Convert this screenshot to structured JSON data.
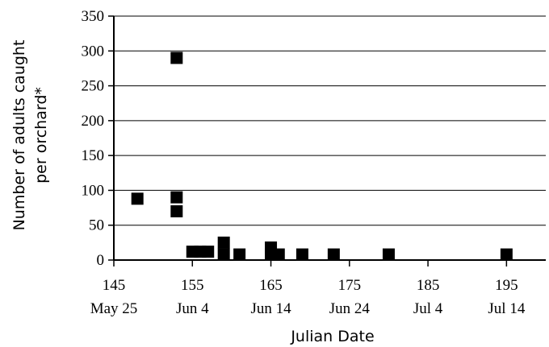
{
  "chart_data": {
    "type": "scatter",
    "title": "",
    "xlabel": "Julian Date",
    "ylabel_lines": [
      "Number of adults caught",
      "per orchard*"
    ],
    "xlim": [
      145,
      200
    ],
    "ylim": [
      0,
      350
    ],
    "x_ticks": [
      {
        "value": 145,
        "label": "145",
        "date": "May 25"
      },
      {
        "value": 155,
        "label": "155",
        "date": "Jun 4"
      },
      {
        "value": 165,
        "label": "165",
        "date": "Jun 14"
      },
      {
        "value": 175,
        "label": "175",
        "date": "Jun 24"
      },
      {
        "value": 185,
        "label": "185",
        "date": "Jul 4"
      },
      {
        "value": 195,
        "label": "195",
        "date": "Jul 14"
      }
    ],
    "y_ticks": [
      {
        "value": 0,
        "label": "0"
      },
      {
        "value": 50,
        "label": "50"
      },
      {
        "value": 100,
        "label": "100"
      },
      {
        "value": 150,
        "label": "150"
      },
      {
        "value": 200,
        "label": "200"
      },
      {
        "value": 250,
        "label": "250"
      },
      {
        "value": 300,
        "label": "300"
      },
      {
        "value": 350,
        "label": "350"
      }
    ],
    "grid": "horizontal",
    "marker_color": "#000000",
    "points": [
      {
        "x": 148,
        "y": 88
      },
      {
        "x": 153,
        "y": 290
      },
      {
        "x": 153,
        "y": 90
      },
      {
        "x": 153,
        "y": 70
      },
      {
        "x": 155,
        "y": 12
      },
      {
        "x": 156,
        "y": 12
      },
      {
        "x": 157,
        "y": 12
      },
      {
        "x": 159,
        "y": 25
      },
      {
        "x": 159,
        "y": 8
      },
      {
        "x": 161,
        "y": 8
      },
      {
        "x": 165,
        "y": 18
      },
      {
        "x": 165,
        "y": 8
      },
      {
        "x": 166,
        "y": 8
      },
      {
        "x": 169,
        "y": 8
      },
      {
        "x": 173,
        "y": 8
      },
      {
        "x": 180,
        "y": 8
      },
      {
        "x": 195,
        "y": 8
      }
    ]
  }
}
